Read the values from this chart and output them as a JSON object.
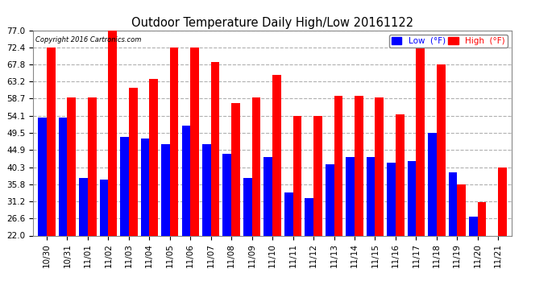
{
  "title": "Outdoor Temperature Daily High/Low 20161122",
  "copyright": "Copyright 2016 Cartronics.com",
  "legend_low_label": "Low  (°F)",
  "legend_high_label": "High  (°F)",
  "dates": [
    "10/30",
    "10/31",
    "11/01",
    "11/02",
    "11/03",
    "11/04",
    "11/05",
    "11/06",
    "11/07",
    "11/08",
    "11/09",
    "11/10",
    "11/11",
    "11/12",
    "11/13",
    "11/14",
    "11/15",
    "11/16",
    "11/17",
    "11/18",
    "11/19",
    "11/20",
    "11/21"
  ],
  "high_temps": [
    72.4,
    59.0,
    59.0,
    77.0,
    61.5,
    64.0,
    72.4,
    72.4,
    68.5,
    57.5,
    59.0,
    65.0,
    54.1,
    54.1,
    59.5,
    59.5,
    59.0,
    54.5,
    72.4,
    67.8,
    35.8,
    31.0,
    40.3
  ],
  "low_temps": [
    53.5,
    53.5,
    37.5,
    37.0,
    48.5,
    48.0,
    46.5,
    51.5,
    46.5,
    44.0,
    37.5,
    43.0,
    33.5,
    32.0,
    41.0,
    43.0,
    43.0,
    41.5,
    42.0,
    49.5,
    39.0,
    27.0,
    22.0
  ],
  "bg_color": "#ffffff",
  "plot_bg_color": "#ffffff",
  "grid_color": "#b0b0b0",
  "high_color": "#ff0000",
  "low_color": "#0000ff",
  "title_color": "#000000",
  "copyright_color": "#000000",
  "axis_label_color": "#000000",
  "yticks": [
    22.0,
    26.6,
    31.2,
    35.8,
    40.3,
    44.9,
    49.5,
    54.1,
    58.7,
    63.2,
    67.8,
    72.4,
    77.0
  ],
  "ymin": 22.0,
  "ymax": 77.0,
  "bar_width": 0.42,
  "legend_low_bg": "#0000ff",
  "legend_high_bg": "#ff0000"
}
